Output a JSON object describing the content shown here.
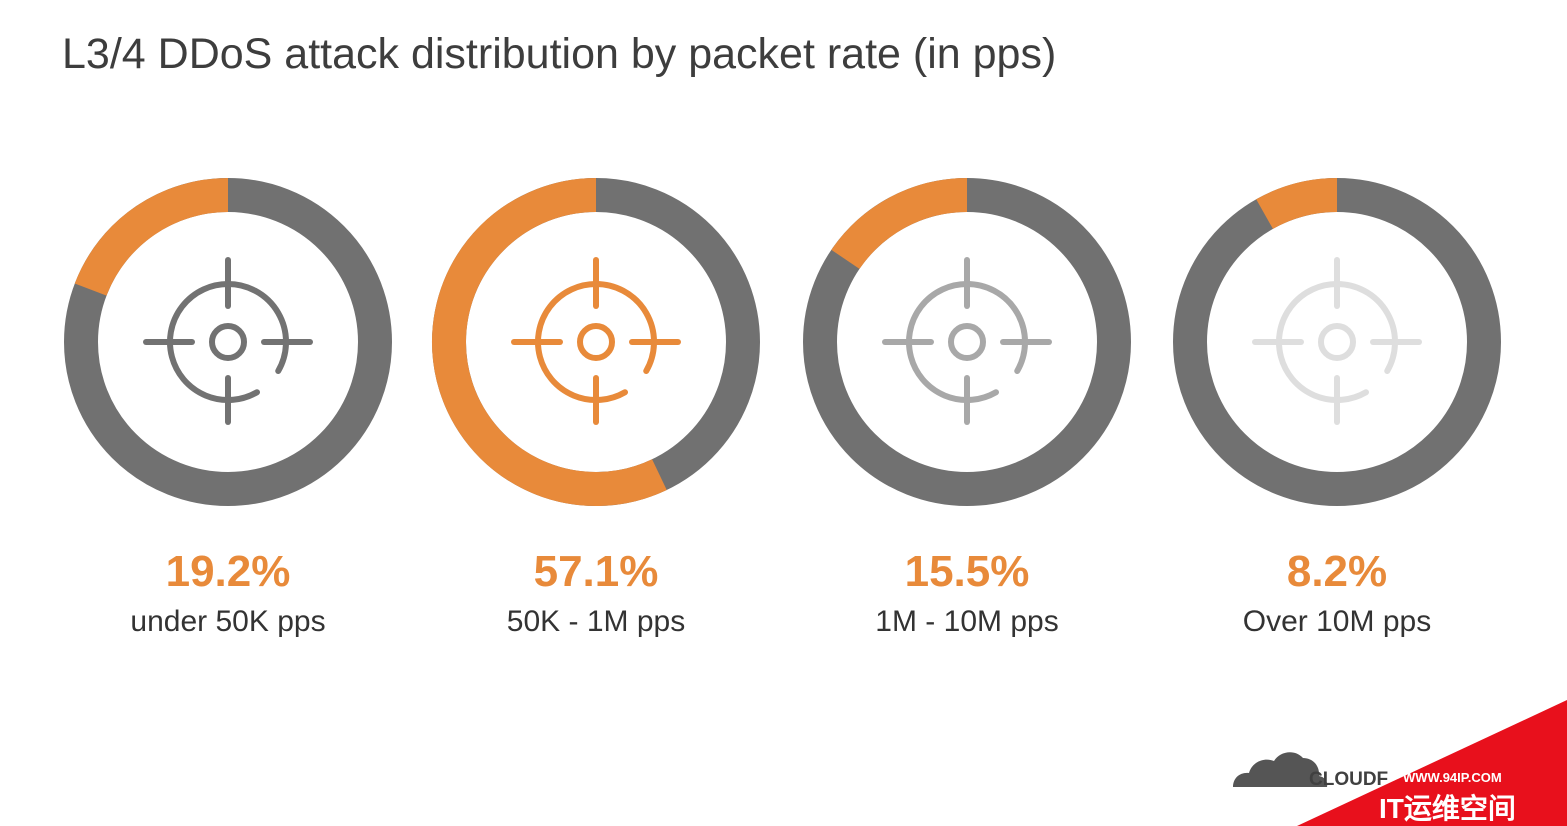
{
  "chart_data": {
    "type": "pie",
    "title": "L3/4 DDoS attack distribution by packet rate (in pps)",
    "categories": [
      "under 50K pps",
      "50K - 1M pps",
      "1M - 10M pps",
      "Over 10M pps"
    ],
    "values": [
      19.2,
      57.1,
      15.5,
      8.2
    ],
    "value_labels": [
      "19.2%",
      "57.1%",
      "15.5%",
      "8.2%"
    ],
    "unit": "%"
  },
  "colors": {
    "accent": "#e88a3a",
    "track": "#717171",
    "icons": [
      "#727272",
      "#e88a3a",
      "#a8a8a8",
      "#dedede"
    ]
  },
  "icon_names": [
    "crosshair-icon",
    "cloud-icon"
  ],
  "logo": {
    "brand_text": "CLOUDF",
    "watermark_url": "WWW.94IP.COM",
    "watermark_name": "IT运维空间"
  }
}
